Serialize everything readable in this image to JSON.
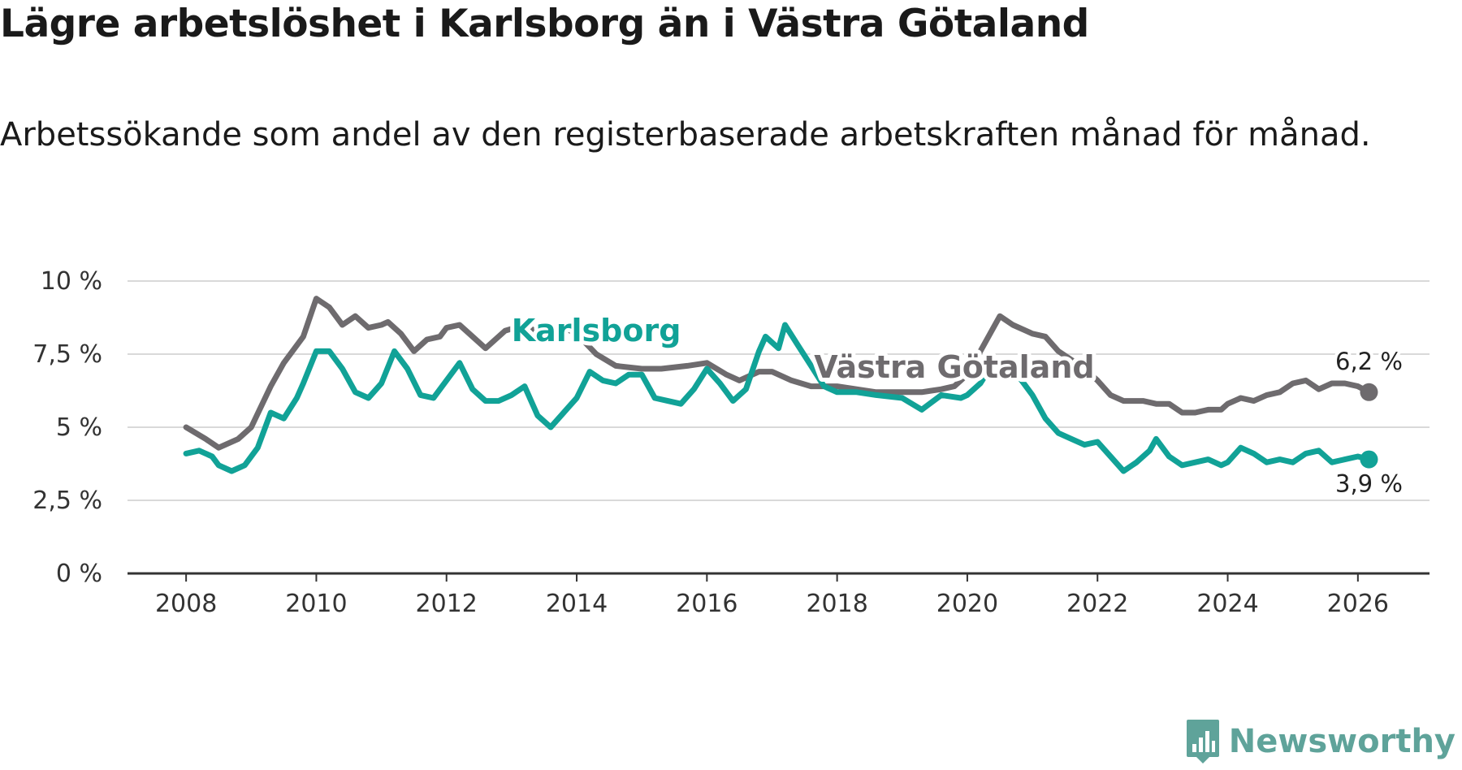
{
  "title": "Lägre arbetslöshet i Karlsborg än i Västra Götaland",
  "subtitle": "Arbetssökande som andel av den registerbaserade arbetskraften månad för månad.",
  "brand": {
    "name": "Newsworthy"
  },
  "colors": {
    "karlsborg": "#11a297",
    "vastra": "#6e6b6e",
    "grid": "#d9d9d9",
    "axis": "#333333",
    "brand": "#5fa39a"
  },
  "chart_data": {
    "type": "line",
    "title": "Lägre arbetslöshet i Karlsborg än i Västra Götaland",
    "xlabel": "",
    "ylabel": "",
    "xlim": [
      2007.1,
      2027.1
    ],
    "ylim": [
      0,
      10
    ],
    "grid": true,
    "x_ticks": [
      2008,
      2010,
      2012,
      2014,
      2016,
      2018,
      2020,
      2022,
      2024,
      2026
    ],
    "x_tick_labels": [
      "2008",
      "2010",
      "2012",
      "2014",
      "2016",
      "2018",
      "2020",
      "2022",
      "2024",
      "2026"
    ],
    "y_ticks": [
      0,
      2.5,
      5,
      7.5,
      10
    ],
    "y_tick_labels": [
      "0 %",
      "2,5 %",
      "5 %",
      "7,5 %",
      "10 %"
    ],
    "series": [
      {
        "name": "Västra Götaland",
        "label": "Västra Götaland",
        "end_label": "6,2 %",
        "points": [
          [
            2008.0,
            5.0
          ],
          [
            2008.3,
            4.6
          ],
          [
            2008.5,
            4.3
          ],
          [
            2008.8,
            4.6
          ],
          [
            2009.0,
            5.0
          ],
          [
            2009.3,
            6.4
          ],
          [
            2009.5,
            7.2
          ],
          [
            2009.8,
            8.1
          ],
          [
            2010.0,
            9.4
          ],
          [
            2010.2,
            9.1
          ],
          [
            2010.4,
            8.5
          ],
          [
            2010.6,
            8.8
          ],
          [
            2010.8,
            8.4
          ],
          [
            2011.0,
            8.5
          ],
          [
            2011.1,
            8.6
          ],
          [
            2011.3,
            8.2
          ],
          [
            2011.5,
            7.6
          ],
          [
            2011.7,
            8.0
          ],
          [
            2011.9,
            8.1
          ],
          [
            2012.0,
            8.4
          ],
          [
            2012.2,
            8.5
          ],
          [
            2012.4,
            8.1
          ],
          [
            2012.6,
            7.7
          ],
          [
            2012.9,
            8.3
          ],
          [
            2013.2,
            8.5
          ],
          [
            2013.5,
            8.1
          ],
          [
            2013.8,
            8.4
          ],
          [
            2014.0,
            8.2
          ],
          [
            2014.3,
            7.5
          ],
          [
            2014.6,
            7.1
          ],
          [
            2015.0,
            7.0
          ],
          [
            2015.3,
            7.0
          ],
          [
            2015.7,
            7.1
          ],
          [
            2016.0,
            7.2
          ],
          [
            2016.3,
            6.8
          ],
          [
            2016.5,
            6.6
          ],
          [
            2016.8,
            6.9
          ],
          [
            2017.0,
            6.9
          ],
          [
            2017.3,
            6.6
          ],
          [
            2017.6,
            6.4
          ],
          [
            2018.0,
            6.4
          ],
          [
            2018.3,
            6.3
          ],
          [
            2018.6,
            6.2
          ],
          [
            2019.0,
            6.2
          ],
          [
            2019.3,
            6.2
          ],
          [
            2019.6,
            6.3
          ],
          [
            2019.8,
            6.4
          ],
          [
            2020.0,
            6.8
          ],
          [
            2020.2,
            7.6
          ],
          [
            2020.4,
            8.4
          ],
          [
            2020.5,
            8.8
          ],
          [
            2020.7,
            8.5
          ],
          [
            2020.9,
            8.3
          ],
          [
            2021.0,
            8.2
          ],
          [
            2021.2,
            8.1
          ],
          [
            2021.4,
            7.6
          ],
          [
            2021.6,
            7.3
          ],
          [
            2021.8,
            7.0
          ],
          [
            2022.0,
            6.6
          ],
          [
            2022.2,
            6.1
          ],
          [
            2022.4,
            5.9
          ],
          [
            2022.7,
            5.9
          ],
          [
            2022.9,
            5.8
          ],
          [
            2023.1,
            5.8
          ],
          [
            2023.3,
            5.5
          ],
          [
            2023.5,
            5.5
          ],
          [
            2023.7,
            5.6
          ],
          [
            2023.9,
            5.6
          ],
          [
            2024.0,
            5.8
          ],
          [
            2024.2,
            6.0
          ],
          [
            2024.4,
            5.9
          ],
          [
            2024.6,
            6.1
          ],
          [
            2024.8,
            6.2
          ],
          [
            2025.0,
            6.5
          ],
          [
            2025.2,
            6.6
          ],
          [
            2025.4,
            6.3
          ],
          [
            2025.6,
            6.5
          ],
          [
            2025.8,
            6.5
          ],
          [
            2026.0,
            6.4
          ],
          [
            2026.17,
            6.2
          ]
        ]
      },
      {
        "name": "Karlsborg",
        "label": "Karlsborg",
        "end_label": "3,9 %",
        "points": [
          [
            2008.0,
            4.1
          ],
          [
            2008.2,
            4.2
          ],
          [
            2008.4,
            4.0
          ],
          [
            2008.5,
            3.7
          ],
          [
            2008.7,
            3.5
          ],
          [
            2008.9,
            3.7
          ],
          [
            2009.1,
            4.3
          ],
          [
            2009.3,
            5.5
          ],
          [
            2009.5,
            5.3
          ],
          [
            2009.7,
            6.0
          ],
          [
            2009.8,
            6.5
          ],
          [
            2010.0,
            7.6
          ],
          [
            2010.2,
            7.6
          ],
          [
            2010.4,
            7.0
          ],
          [
            2010.6,
            6.2
          ],
          [
            2010.8,
            6.0
          ],
          [
            2011.0,
            6.5
          ],
          [
            2011.2,
            7.6
          ],
          [
            2011.4,
            7.0
          ],
          [
            2011.6,
            6.1
          ],
          [
            2011.8,
            6.0
          ],
          [
            2012.0,
            6.6
          ],
          [
            2012.2,
            7.2
          ],
          [
            2012.4,
            6.3
          ],
          [
            2012.6,
            5.9
          ],
          [
            2012.8,
            5.9
          ],
          [
            2013.0,
            6.1
          ],
          [
            2013.2,
            6.4
          ],
          [
            2013.4,
            5.4
          ],
          [
            2013.6,
            5.0
          ],
          [
            2013.8,
            5.5
          ],
          [
            2014.0,
            6.0
          ],
          [
            2014.2,
            6.9
          ],
          [
            2014.4,
            6.6
          ],
          [
            2014.6,
            6.5
          ],
          [
            2014.8,
            6.8
          ],
          [
            2015.0,
            6.8
          ],
          [
            2015.2,
            6.0
          ],
          [
            2015.4,
            5.9
          ],
          [
            2015.6,
            5.8
          ],
          [
            2015.8,
            6.3
          ],
          [
            2016.0,
            7.0
          ],
          [
            2016.2,
            6.5
          ],
          [
            2016.4,
            5.9
          ],
          [
            2016.6,
            6.3
          ],
          [
            2016.8,
            7.6
          ],
          [
            2016.9,
            8.1
          ],
          [
            2017.1,
            7.7
          ],
          [
            2017.2,
            8.5
          ],
          [
            2017.4,
            7.8
          ],
          [
            2017.6,
            7.1
          ],
          [
            2017.8,
            6.4
          ],
          [
            2018.0,
            6.2
          ],
          [
            2018.3,
            6.2
          ],
          [
            2018.6,
            6.1
          ],
          [
            2019.0,
            6.0
          ],
          [
            2019.3,
            5.6
          ],
          [
            2019.6,
            6.1
          ],
          [
            2019.9,
            6.0
          ],
          [
            2020.0,
            6.1
          ],
          [
            2020.2,
            6.5
          ],
          [
            2020.4,
            7.2
          ],
          [
            2020.6,
            7.3
          ],
          [
            2020.8,
            6.7
          ],
          [
            2021.0,
            6.1
          ],
          [
            2021.2,
            5.3
          ],
          [
            2021.4,
            4.8
          ],
          [
            2021.6,
            4.6
          ],
          [
            2021.8,
            4.4
          ],
          [
            2022.0,
            4.5
          ],
          [
            2022.2,
            4.0
          ],
          [
            2022.4,
            3.5
          ],
          [
            2022.6,
            3.8
          ],
          [
            2022.8,
            4.2
          ],
          [
            2022.9,
            4.6
          ],
          [
            2023.1,
            4.0
          ],
          [
            2023.3,
            3.7
          ],
          [
            2023.5,
            3.8
          ],
          [
            2023.7,
            3.9
          ],
          [
            2023.9,
            3.7
          ],
          [
            2024.0,
            3.8
          ],
          [
            2024.2,
            4.3
          ],
          [
            2024.4,
            4.1
          ],
          [
            2024.6,
            3.8
          ],
          [
            2024.8,
            3.9
          ],
          [
            2025.0,
            3.8
          ],
          [
            2025.2,
            4.1
          ],
          [
            2025.4,
            4.2
          ],
          [
            2025.6,
            3.8
          ],
          [
            2025.8,
            3.9
          ],
          [
            2026.0,
            4.0
          ],
          [
            2026.17,
            3.9
          ]
        ]
      }
    ]
  }
}
